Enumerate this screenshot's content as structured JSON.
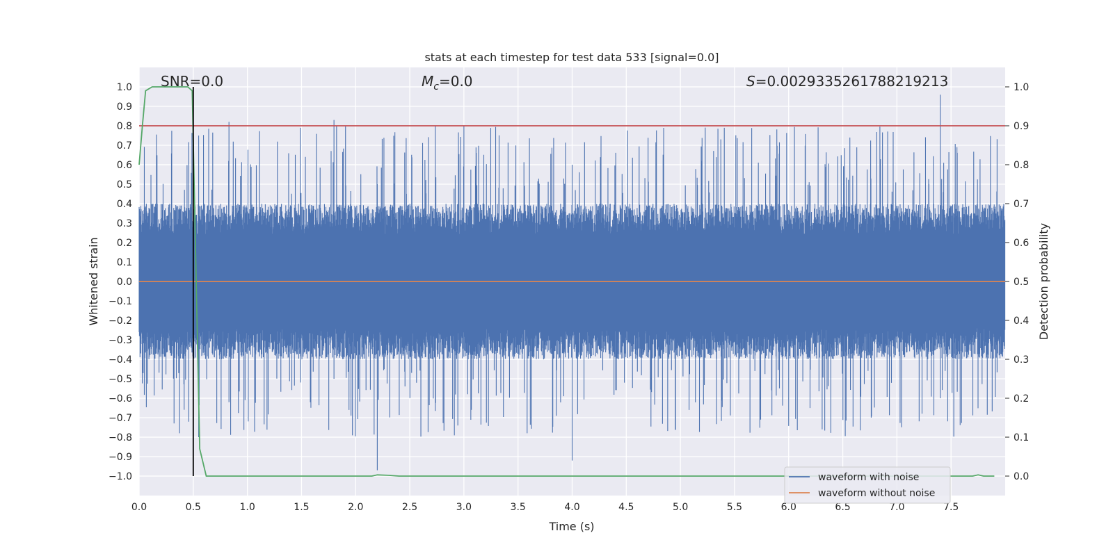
{
  "chart_data": {
    "type": "line",
    "title": "stats at each timestep for test data 533 [signal=0.0]",
    "xlabel": "Time (s)",
    "ylabel": "Whitened strain",
    "y2label": "Detection probability",
    "xlim": [
      0.0,
      8.0
    ],
    "ylim": [
      -1.1,
      1.1
    ],
    "y2lim": [
      -0.05,
      1.05
    ],
    "xticks": [
      "0.0",
      "0.5",
      "1.0",
      "1.5",
      "2.0",
      "2.5",
      "3.0",
      "3.5",
      "4.0",
      "4.5",
      "5.0",
      "5.5",
      "6.0",
      "6.5",
      "7.0",
      "7.5"
    ],
    "yticks": [
      "1.0",
      "0.9",
      "0.8",
      "0.7",
      "0.6",
      "0.5",
      "0.4",
      "0.3",
      "0.2",
      "0.1",
      "0.0",
      "−0.1",
      "−0.2",
      "−0.3",
      "−0.4",
      "−0.5",
      "−0.6",
      "−0.7",
      "−0.8",
      "−0.9",
      "−1.0"
    ],
    "y2ticks": [
      "1.0",
      "0.9",
      "0.8",
      "0.7",
      "0.6",
      "0.5",
      "0.4",
      "0.3",
      "0.2",
      "0.1",
      "0.0"
    ],
    "annotations": {
      "snr": "SNR=0.0",
      "mc_symbol": "M",
      "mc_sub": "c",
      "mc_value": "=0.0",
      "s_symbol": "S",
      "s_value": "=0.0029335261788219213"
    },
    "threshold": 0.9,
    "marker_time": 0.5,
    "series": [
      {
        "name": "waveform with noise",
        "color": "#4c72b0",
        "envelope_typical": 0.4,
        "peak_max": 0.96,
        "peak_min": -0.97
      },
      {
        "name": "waveform without noise",
        "color": "#dd8452",
        "value": 0.0
      },
      {
        "name": "Detection probability",
        "color": "#55a868",
        "x": [
          0.0,
          0.03,
          0.06,
          0.12,
          0.2,
          0.3,
          0.4,
          0.45,
          0.49,
          0.52,
          0.56,
          0.62,
          0.7,
          1.0,
          2.0,
          2.15,
          2.2,
          2.3,
          2.4,
          3.0,
          5.0,
          7.0,
          7.7,
          7.75,
          7.8,
          7.9
        ],
        "y": [
          0.8,
          0.9,
          0.99,
          1.0,
          1.0,
          1.0,
          1.0,
          1.0,
          0.99,
          0.6,
          0.07,
          0.0,
          0.0,
          0.0,
          0.0,
          0.0,
          0.003,
          0.002,
          0.0,
          0.0,
          0.0,
          0.0,
          0.0,
          0.003,
          0.0,
          0.0
        ]
      }
    ]
  }
}
